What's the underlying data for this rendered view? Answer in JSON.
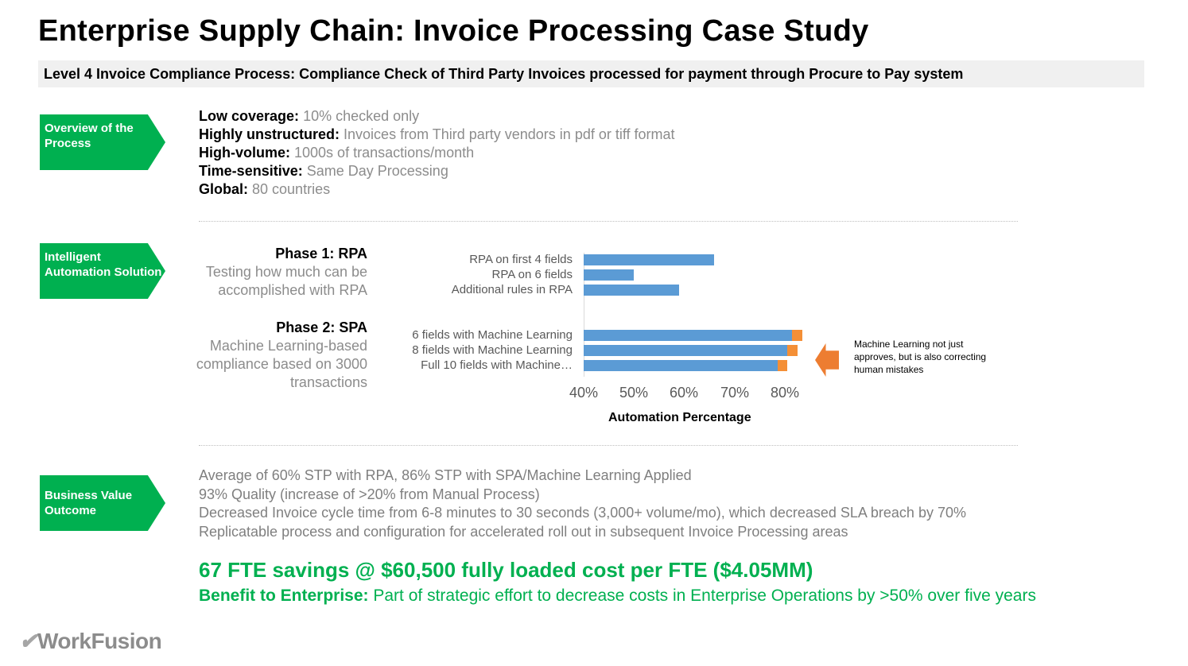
{
  "title": "Enterprise Supply Chain: Invoice Processing Case Study",
  "subtitle": "Level 4 Invoice Compliance Process: Compliance Check of Third Party Invoices processed for payment through Procure to Pay system",
  "sections": {
    "overview": {
      "label": "Overview of the Process",
      "items": [
        {
          "key": "Low coverage:",
          "value": "10% checked only"
        },
        {
          "key": "Highly unstructured:",
          "value": "Invoices from Third party vendors in pdf or tiff format"
        },
        {
          "key": "High-volume:",
          "value": "1000s of transactions/month"
        },
        {
          "key": "Time-sensitive:",
          "value": "Same Day Processing"
        },
        {
          "key": "Global:",
          "value": "80 countries"
        }
      ]
    },
    "solution": {
      "label": "Intelligent Automation Solution",
      "phase1": {
        "heading": "Phase 1: RPA",
        "desc": "Testing how much can be accomplished with RPA"
      },
      "phase2": {
        "heading": "Phase 2: SPA",
        "desc": "Machine Learning-based compliance based on 3000 transactions"
      },
      "note": "Machine Learning not just approves, but is also correcting human mistakes"
    },
    "outcome": {
      "label": "Business Value Outcome",
      "items": [
        "Average of 60% STP with RPA, 86% STP with SPA/Machine Learning Applied",
        "93% Quality (increase of >20% from Manual Process)",
        "Decreased Invoice cycle time from 6-8 minutes to 30 seconds (3,000+ volume/mo), which decreased SLA breach by 70%",
        "Replicatable process and configuration for accelerated roll out in subsequent Invoice Processing areas"
      ],
      "fte": "67 FTE savings @ $60,500 fully loaded cost per FTE ($4.05MM)",
      "benefit_key": "Benefit to Enterprise:",
      "benefit_value": "Part of strategic effort to decrease costs in Enterprise Operations by >50% over five years"
    }
  },
  "logo": {
    "mark": "✔",
    "text": "WorkFusion"
  },
  "chart_data": {
    "type": "bar",
    "orientation": "horizontal",
    "stacked": true,
    "title": "",
    "xlabel": "Automation Percentage",
    "ylabel": "",
    "xlim": [
      40,
      80
    ],
    "tick_labels": [
      "40%",
      "50%",
      "60%",
      "70%",
      "80%"
    ],
    "categories": [
      "RPA on first 4 fields",
      "RPA on 6 fields",
      "Additional rules in RPA",
      "6 fields with Machine Learning",
      "8 fields with Machine Learning",
      "Full 10 fields with Machine…"
    ],
    "series": [
      {
        "name": "Automation",
        "color": "#5b9bd5",
        "values": [
          66,
          50,
          59,
          81.5,
          80.5,
          78.5
        ]
      },
      {
        "name": "Correction of human mistakes",
        "color": "#f48f36",
        "values": [
          0,
          0,
          0,
          2,
          2,
          2
        ]
      }
    ],
    "grid": false,
    "legend": "none"
  }
}
